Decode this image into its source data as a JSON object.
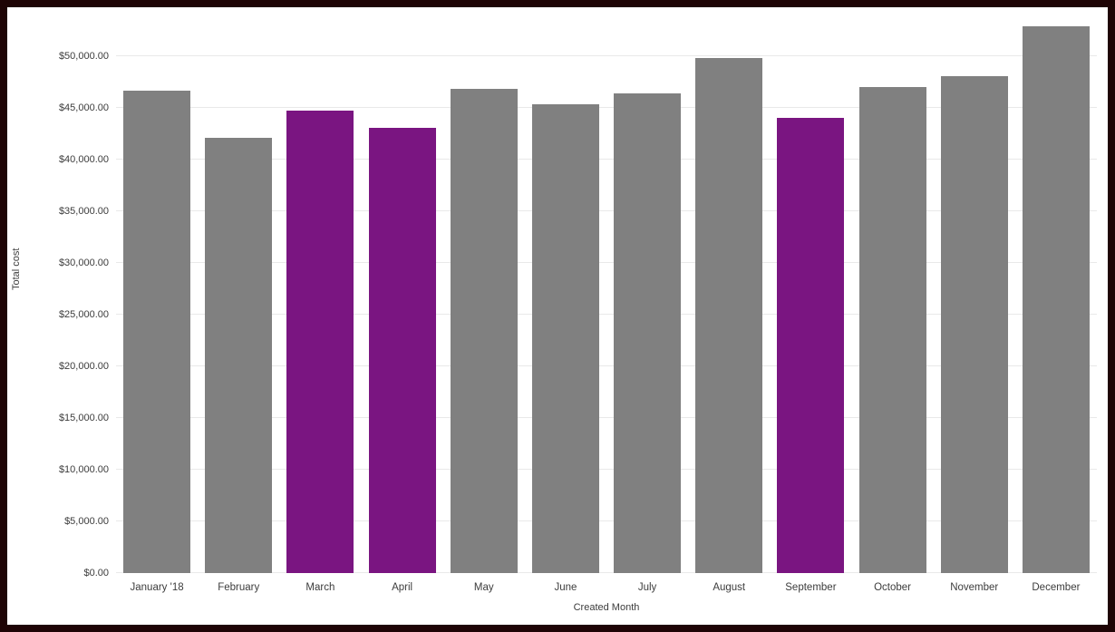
{
  "chart_data": {
    "type": "bar",
    "title": "",
    "xlabel": "Created Month",
    "ylabel": "Total cost",
    "categories": [
      "January '18",
      "February",
      "March",
      "April",
      "May",
      "June",
      "July",
      "August",
      "September",
      "October",
      "November",
      "December"
    ],
    "values": [
      46600,
      42100,
      44700,
      43000,
      46800,
      45300,
      46400,
      49800,
      44000,
      47000,
      48000,
      52900
    ],
    "bar_colors": [
      "gray",
      "gray",
      "purple",
      "purple",
      "gray",
      "gray",
      "gray",
      "gray",
      "purple",
      "gray",
      "gray",
      "gray"
    ],
    "colors": {
      "gray": "#808080",
      "purple": "#7a1581",
      "frame": "#1e0405",
      "background": "#ffffff",
      "gridline": "#e9e9e9",
      "text": "#3c3c3c"
    },
    "ylim": [
      0,
      54700
    ],
    "yticks": [
      0,
      5000,
      10000,
      15000,
      20000,
      25000,
      30000,
      35000,
      40000,
      45000,
      50000
    ],
    "ytick_labels": [
      "$0.00",
      "$5,000.00",
      "$10,000.00",
      "$15,000.00",
      "$20,000.00",
      "$25,000.00",
      "$30,000.00",
      "$35,000.00",
      "$40,000.00",
      "$45,000.00",
      "$50,000.00"
    ],
    "grid": true,
    "legend": "none"
  }
}
